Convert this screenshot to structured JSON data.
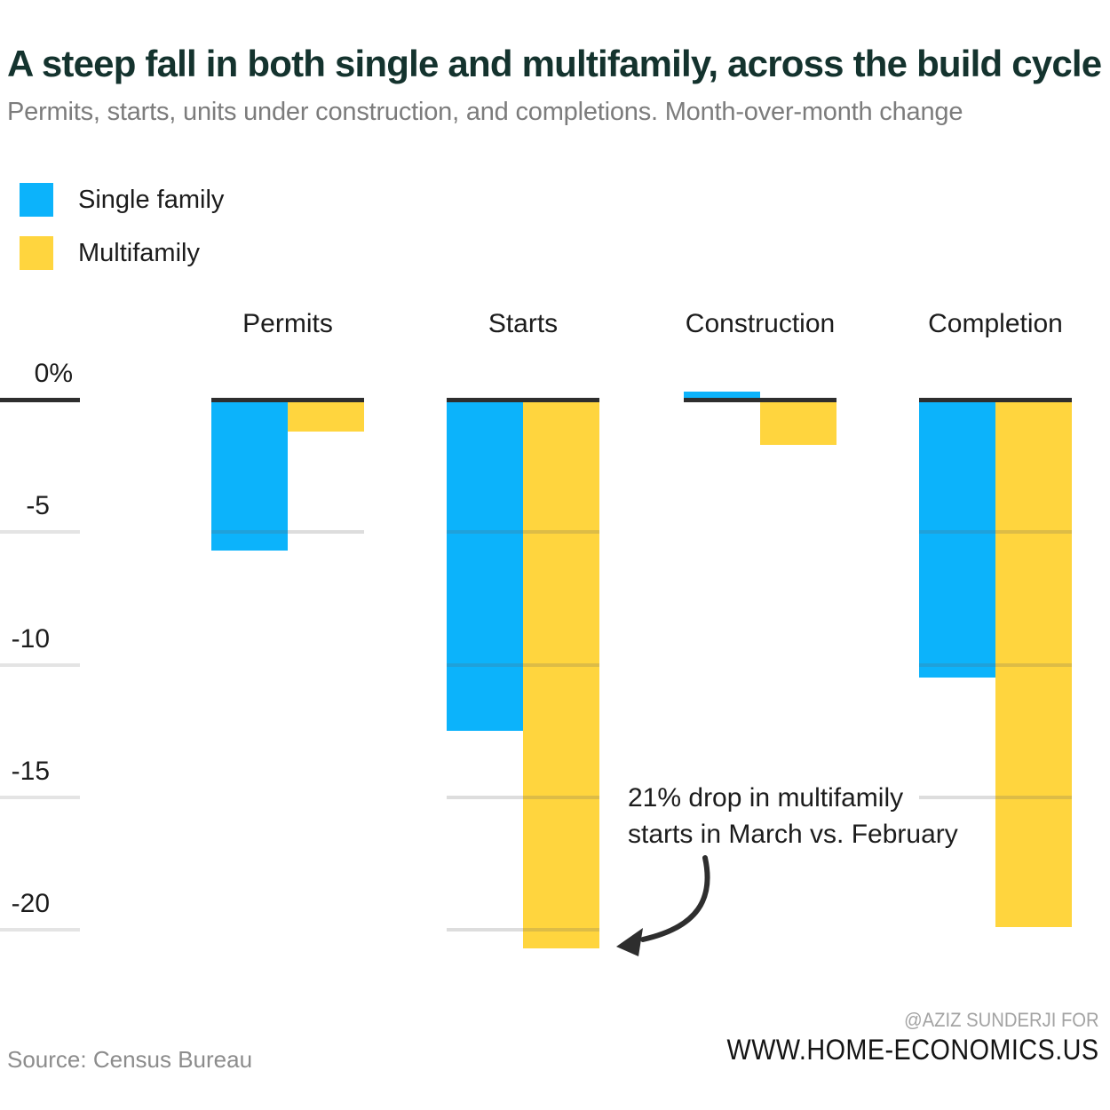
{
  "title": "A steep fall in both single and multifamily, across the build cycle",
  "subtitle": "Permits, starts, units under construction, and completions. Month-over-month change",
  "legend": [
    {
      "label": "Single family",
      "color": "#0cb3fb"
    },
    {
      "label": "Multifamily",
      "color": "#ffd53e"
    }
  ],
  "chart_data": {
    "type": "bar",
    "categories": [
      "Permits",
      "Starts",
      "Construction",
      "Completion"
    ],
    "series": [
      {
        "name": "Single family",
        "color": "#0cb3fb",
        "values": [
          -5.7,
          -12.5,
          0.3,
          -10.5
        ]
      },
      {
        "name": "Multifamily",
        "color": "#ffd53e",
        "values": [
          -1.2,
          -20.7,
          -1.7,
          -19.9
        ]
      }
    ],
    "unit": "% month-over-month change",
    "ytick_labels": [
      "0%",
      "-5",
      "-10",
      "-15",
      "-20"
    ],
    "tick_values": [
      0,
      -5,
      -10,
      -15,
      -20
    ],
    "ylim": [
      -22,
      1
    ],
    "grid": "horizontal, light gray, partial segments per group",
    "legend_position": "top-left",
    "annotation": "21% drop in multifamily starts in March vs. February",
    "zero_line_color": "#2e2e2e"
  },
  "annotation": {
    "line1": "21% drop in multifamily",
    "line2": "starts in March vs. February"
  },
  "footer": {
    "source": "Source: Census Bureau",
    "credit_line1": "@AZIZ SUNDERJI FOR",
    "credit_line2": "WWW.HOME-ECONOMICS.US"
  }
}
